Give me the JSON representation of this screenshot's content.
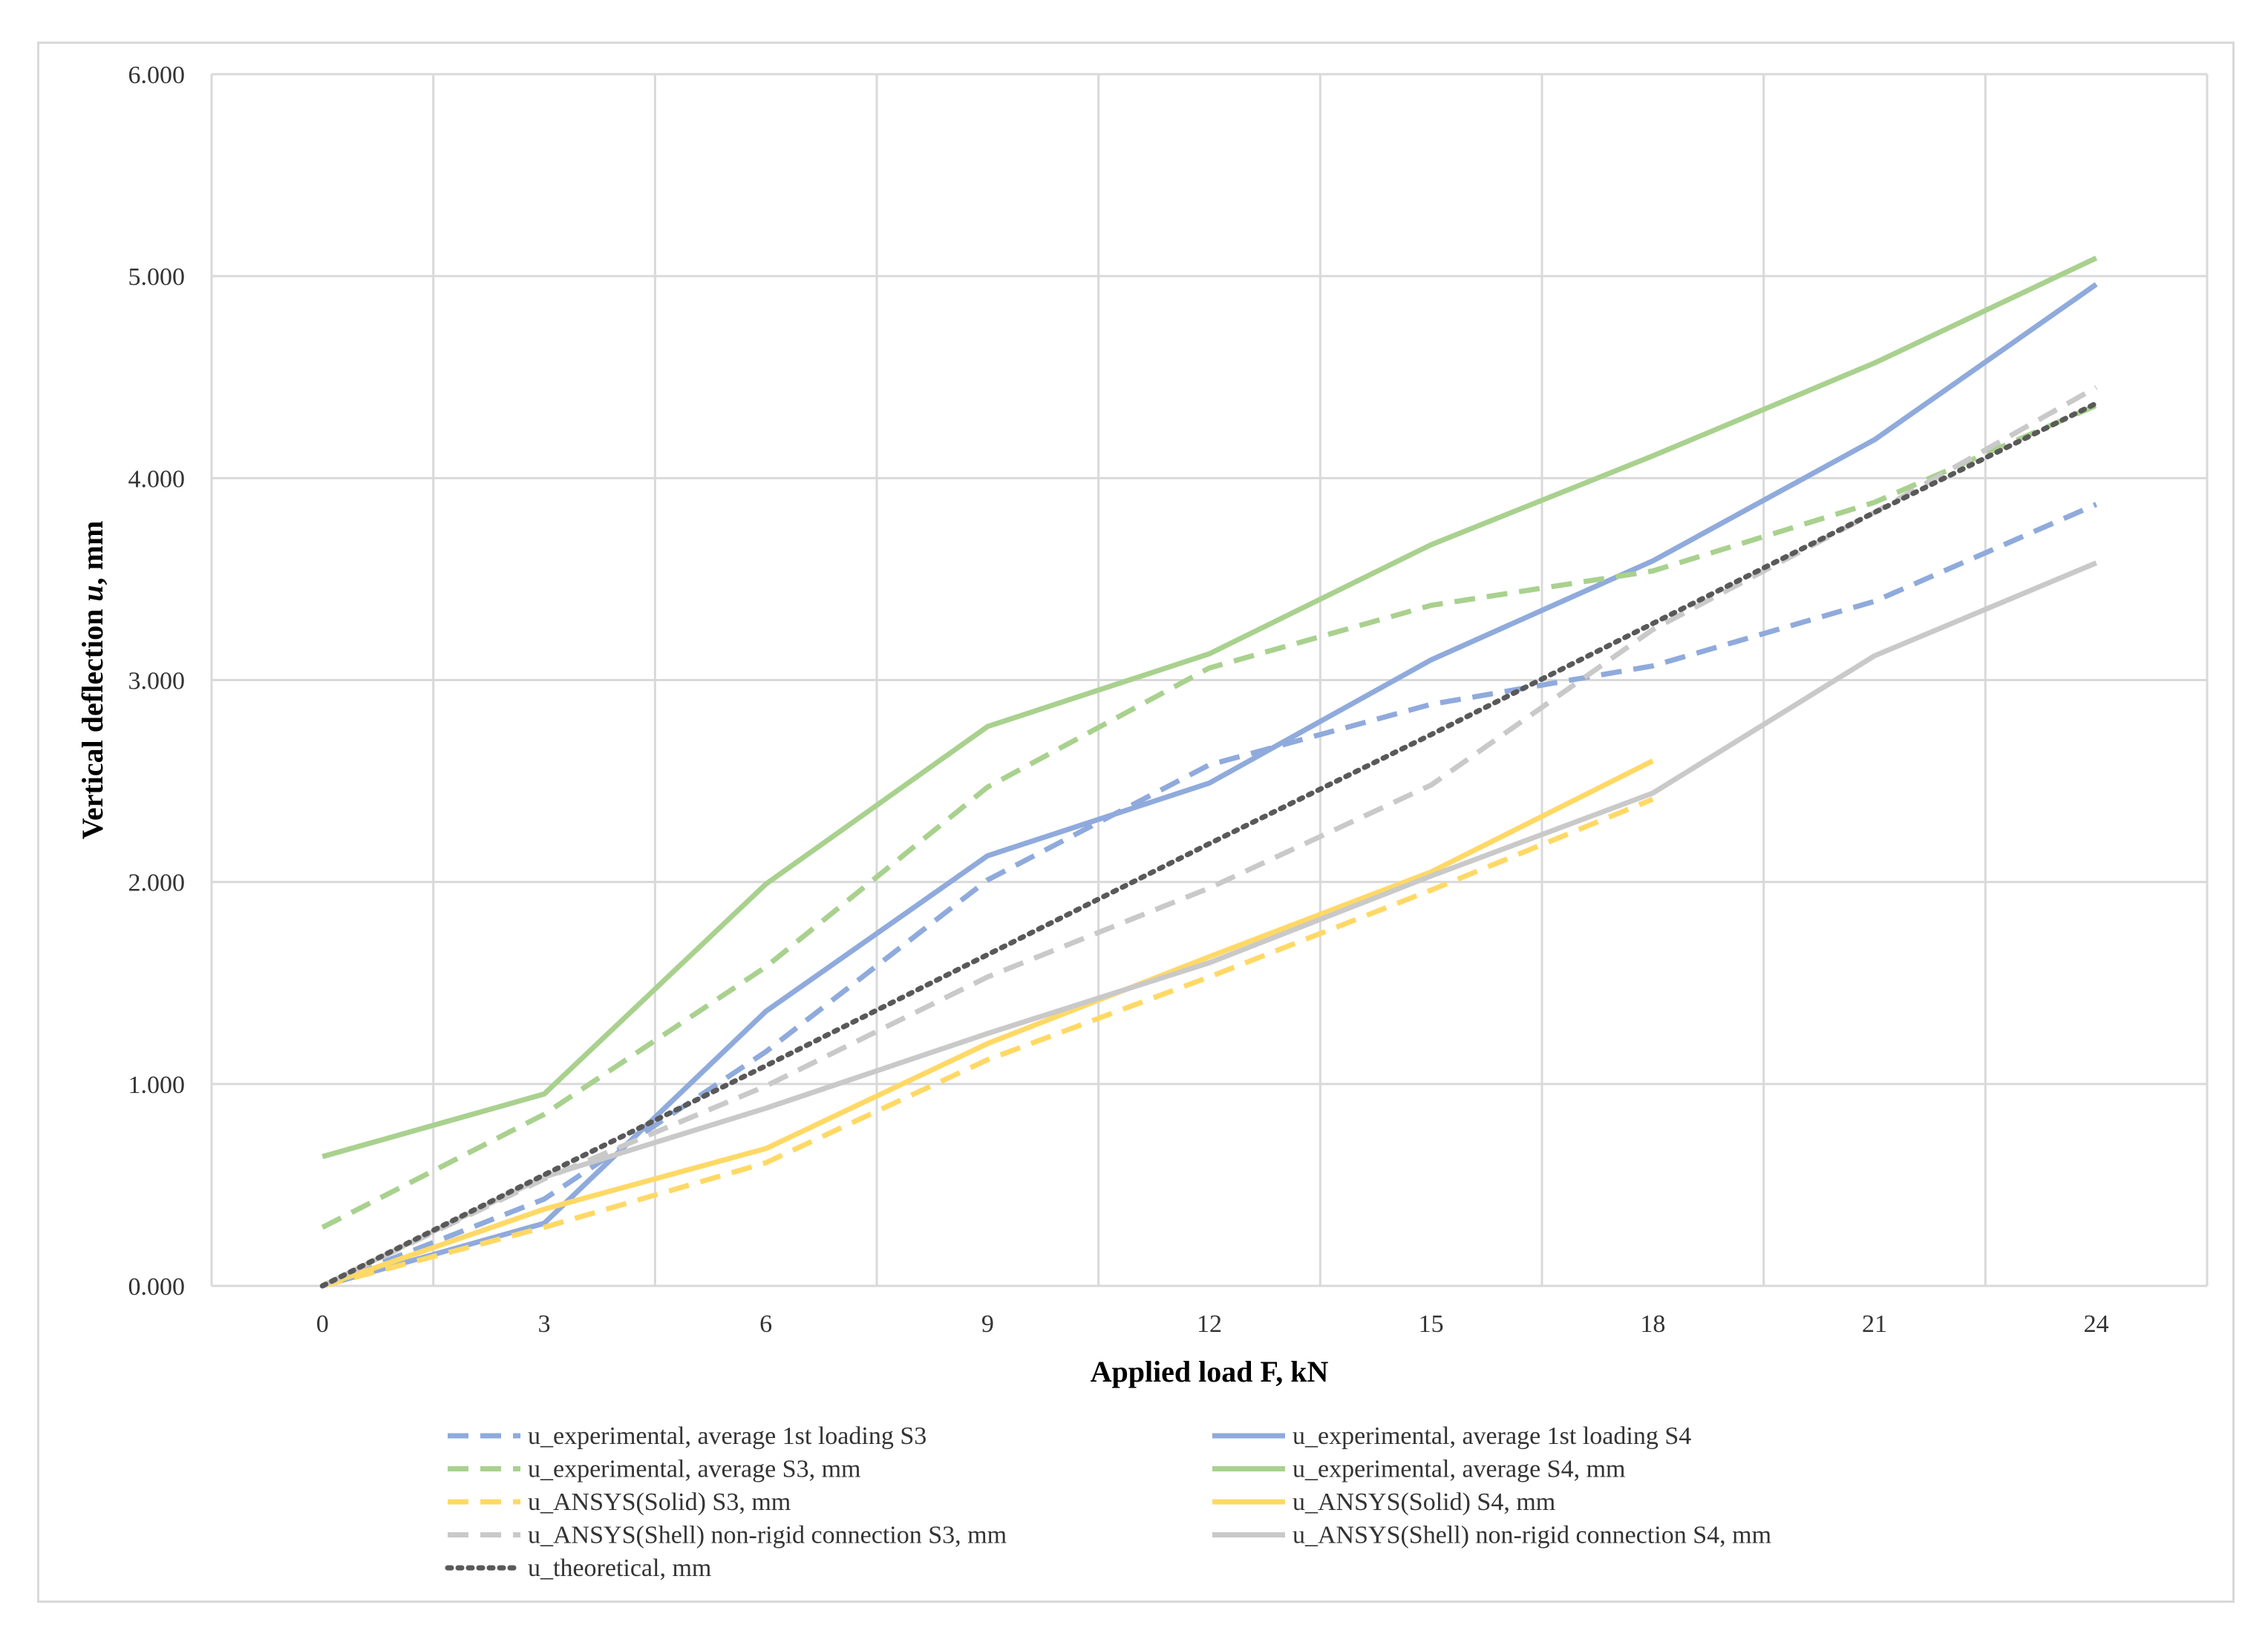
{
  "chart_data": {
    "type": "line",
    "title": "",
    "xlabel": "Applied load F, kN",
    "ylabel_prefix": "Vertical deflection ",
    "ylabel_var": "u",
    "ylabel_suffix": ", mm",
    "x": [
      0,
      3,
      6,
      9,
      12,
      15,
      18,
      21,
      24
    ],
    "x_tick_labels": [
      "0",
      "3",
      "6",
      "9",
      "12",
      "15",
      "18",
      "21",
      "24"
    ],
    "ylim": [
      0,
      6
    ],
    "y_ticks": [
      0,
      1,
      2,
      3,
      4,
      5,
      6
    ],
    "y_tick_labels": [
      "0.000",
      "1.000",
      "2.000",
      "3.000",
      "4.000",
      "5.000",
      "6.000"
    ],
    "grid": true,
    "legend_position": "bottom",
    "series": [
      {
        "name": "u_experimental, average 1st loading S3",
        "color": "#8faadc",
        "dash": "dashed",
        "values": [
          0,
          0.43,
          1.16,
          2.01,
          2.58,
          2.88,
          3.07,
          3.39,
          3.87
        ]
      },
      {
        "name": "u_experimental, average 1st loading S4",
        "color": "#8faadc",
        "dash": "solid",
        "values": [
          0,
          0.31,
          1.36,
          2.13,
          2.49,
          3.1,
          3.59,
          4.19,
          4.96
        ]
      },
      {
        "name": "u_experimental, average S3, mm",
        "color": "#a9d18e",
        "dash": "dashed",
        "values": [
          0.29,
          0.85,
          1.58,
          2.47,
          3.06,
          3.37,
          3.54,
          3.88,
          4.36
        ]
      },
      {
        "name": "u_experimental, average S4, mm",
        "color": "#a9d18e",
        "dash": "solid",
        "values": [
          0.64,
          0.95,
          1.99,
          2.77,
          3.13,
          3.67,
          4.11,
          4.57,
          5.09
        ]
      },
      {
        "name": "u_ANSYS(Solid) S3, mm",
        "color": "#ffd966",
        "dash": "dashed",
        "values": [
          0,
          0.29,
          0.61,
          1.12,
          1.53,
          1.96,
          2.41,
          null,
          null
        ]
      },
      {
        "name": "u_ANSYS(Solid) S4, mm",
        "color": "#ffd966",
        "dash": "solid",
        "values": [
          0,
          0.38,
          0.68,
          1.2,
          1.63,
          2.05,
          2.6,
          null,
          null
        ]
      },
      {
        "name": "u_ANSYS(Shell) non-rigid connection S3, mm",
        "color": "#c9c9c9",
        "dash": "dashed",
        "values": [
          0,
          0.53,
          0.99,
          1.53,
          1.97,
          2.48,
          3.25,
          3.83,
          4.45
        ]
      },
      {
        "name": "u_ANSYS(Shell) non-rigid connection S4, mm",
        "color": "#c9c9c9",
        "dash": "solid",
        "values": [
          0,
          0.54,
          0.88,
          1.25,
          1.6,
          2.03,
          2.44,
          3.12,
          3.58
        ]
      },
      {
        "name": "u_theoretical, mm",
        "color": "#595959",
        "dash": "dotted",
        "values": [
          0,
          0.55,
          1.09,
          1.64,
          2.19,
          2.73,
          3.28,
          3.83,
          4.37
        ]
      }
    ]
  }
}
